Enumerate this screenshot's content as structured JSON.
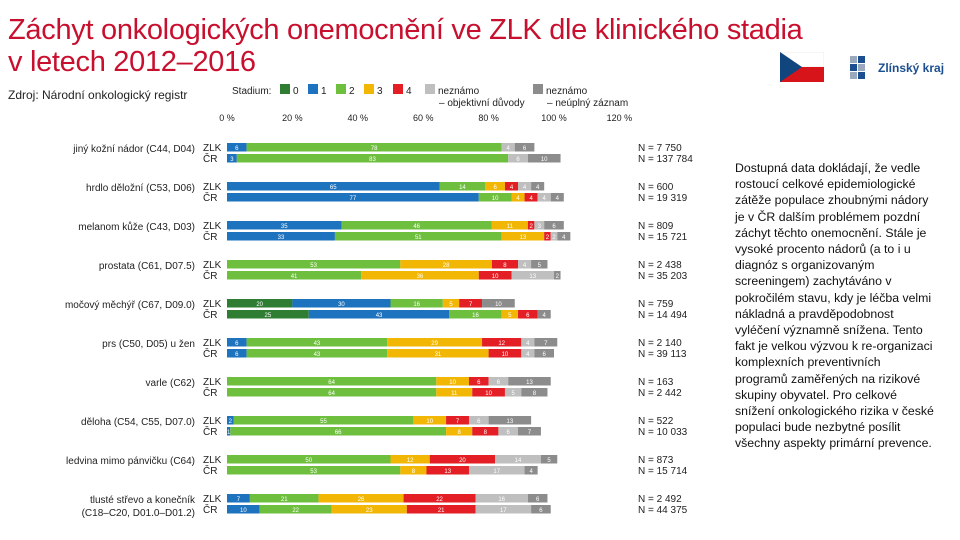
{
  "header": {
    "title_line1": "Záchyt onkologických onemocnění ve ZLK dle klinického stadia",
    "title_line2": "v letech 2012–2016",
    "source": "Zdroj: Národní onkologický registr",
    "logo_text": "Zlínský kraj"
  },
  "legend": {
    "title": "Stadium:",
    "items": [
      {
        "label": "0",
        "color": "#2e7d32"
      },
      {
        "label": "1",
        "color": "#1e73be"
      },
      {
        "label": "2",
        "color": "#6fbf3f"
      },
      {
        "label": "3",
        "color": "#f2b705"
      },
      {
        "label": "4",
        "color": "#e31e24"
      },
      {
        "label": "neznámo\n– objektivní důvody",
        "color": "#bfbfbf"
      },
      {
        "label": "neznámo\n– neúplný záznam",
        "color": "#8c8c8c"
      }
    ]
  },
  "note": "Dostupná data dokládají, že vedle rostoucí celkové epidemiologické zátěže populace zhoubnými nádory je v ČR dalším problémem pozdní záchyt těchto onemocnění. Stále je vysoké procento nádorů (a to i u diagnóz s organizovaným screeningem) zachytáváno v pokročilém stavu, kdy je léčba velmi nákladná a pravděpodobnost vyléčení významně snížena. Tento fakt je velkou výzvou k re-organizaci komplexních preventivních programů zaměřených na rizikové skupiny obyvatel. Pro celkové snížení onkologického rizika v české populaci bude nezbytné posílit všechny aspekty primární prevence.",
  "chart_data": {
    "type": "bar",
    "orientation": "horizontal",
    "stacked": true,
    "xlim": [
      0,
      120
    ],
    "x_ticks": [
      "0 %",
      "20 %",
      "40 %",
      "60 %",
      "80 %",
      "100 %",
      "120 %"
    ],
    "series_order": [
      "0",
      "1",
      "2",
      "3",
      "4",
      "neznámo – objektivní důvody",
      "neznámo – neúplný záznam"
    ],
    "colors": [
      "#2e7d32",
      "#1e73be",
      "#6fbf3f",
      "#f2b705",
      "#e31e24",
      "#bfbfbf",
      "#8c8c8c"
    ],
    "groups": [
      {
        "label": "jiný kožní nádor (C44, D04)",
        "rows": [
          {
            "region": "ZLK",
            "values": [
              0,
              6,
              78,
              0,
              0,
              4,
              6
            ],
            "n": "N = 7 750"
          },
          {
            "region": "ČR",
            "values": [
              0,
              3,
              83,
              0,
              0,
              6,
              10
            ],
            "n": "N = 137 784"
          }
        ]
      },
      {
        "label": "hrdlo děložní (C53, D06)",
        "rows": [
          {
            "region": "ZLK",
            "values": [
              0,
              65,
              14,
              6,
              4,
              4,
              4
            ],
            "n": "N = 600"
          },
          {
            "region": "ČR",
            "values": [
              0,
              77,
              10,
              4,
              4,
              4,
              4
            ],
            "n": "N = 19 319"
          }
        ]
      },
      {
        "label": "melanom kůže (C43, D03)",
        "rows": [
          {
            "region": "ZLK",
            "values": [
              0,
              35,
              46,
              11,
              2,
              3,
              6
            ],
            "n": "N = 809"
          },
          {
            "region": "ČR",
            "values": [
              0,
              33,
              51,
              13,
              2,
              2,
              4
            ],
            "n": "N = 15 721"
          }
        ]
      },
      {
        "label": "prostata (C61, D07.5)",
        "rows": [
          {
            "region": "ZLK",
            "values": [
              0,
              0,
              53,
              28,
              8,
              4,
              5
            ],
            "n": "N = 2 438"
          },
          {
            "region": "ČR",
            "values": [
              0,
              0,
              41,
              36,
              10,
              13,
              2
            ],
            "n": "N = 35 203"
          }
        ]
      },
      {
        "label": "močový měchýř (C67, D09.0)",
        "rows": [
          {
            "region": "ZLK",
            "values": [
              20,
              30,
              16,
              5,
              7,
              0,
              10
            ],
            "n": "N = 759"
          },
          {
            "region": "ČR",
            "values": [
              25,
              43,
              16,
              5,
              6,
              0,
              4
            ],
            "n": "N = 14 494"
          }
        ]
      },
      {
        "label": "prs (C50, D05) u žen",
        "rows": [
          {
            "region": "ZLK",
            "values": [
              0,
              6,
              43,
              29,
              12,
              4,
              7
            ],
            "n": "N = 2 140"
          },
          {
            "region": "ČR",
            "values": [
              0,
              6,
              43,
              31,
              10,
              4,
              6
            ],
            "n": "N = 39 113"
          }
        ]
      },
      {
        "label": "varle (C62)",
        "rows": [
          {
            "region": "ZLK",
            "values": [
              0,
              0,
              64,
              10,
              6,
              6,
              13
            ],
            "n": "N = 163"
          },
          {
            "region": "ČR",
            "values": [
              0,
              0,
              64,
              11,
              10,
              5,
              8
            ],
            "n": "N = 2 442"
          }
        ]
      },
      {
        "label": "děloha (C54, C55, D07.0)",
        "rows": [
          {
            "region": "ZLK",
            "values": [
              0,
              2,
              55,
              10,
              7,
              6,
              13
            ],
            "n": "N = 522"
          },
          {
            "region": "ČR",
            "values": [
              0,
              1,
              66,
              8,
              8,
              6,
              7
            ],
            "n": "N = 10 033"
          }
        ]
      },
      {
        "label": "ledvina mimo pánvičku (C64)",
        "rows": [
          {
            "region": "ZLK",
            "values": [
              0,
              0,
              50,
              12,
              20,
              14,
              5
            ],
            "n": "N = 873"
          },
          {
            "region": "ČR",
            "values": [
              0,
              0,
              53,
              8,
              13,
              17,
              4
            ],
            "n": "N = 15 714"
          }
        ]
      },
      {
        "label": "tlusté střevo a konečník\n(C18–C20, D01.0–D01.2)",
        "rows": [
          {
            "region": "ZLK",
            "values": [
              0,
              7,
              21,
              26,
              22,
              16,
              6
            ],
            "n": "N = 2 492"
          },
          {
            "region": "ČR",
            "values": [
              0,
              10,
              22,
              23,
              21,
              17,
              6
            ],
            "n": "N = 44 375"
          }
        ]
      }
    ]
  }
}
